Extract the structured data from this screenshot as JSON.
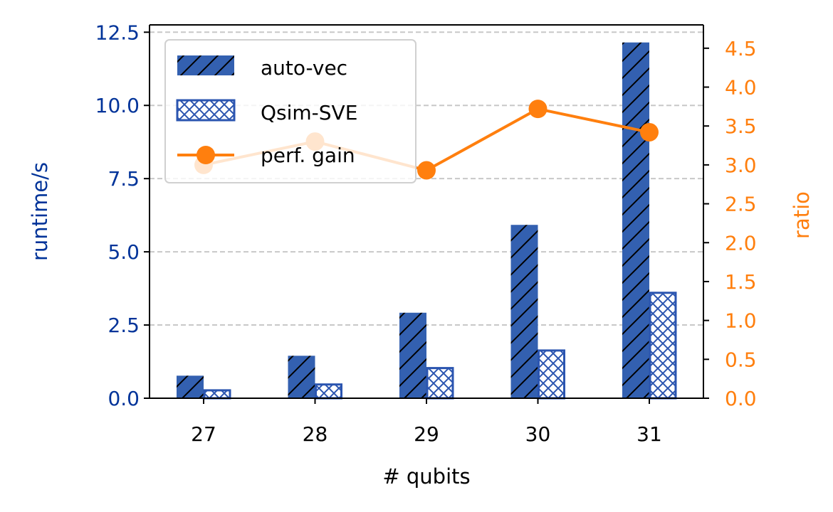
{
  "chart_data": {
    "type": "bar",
    "categories": [
      "27",
      "28",
      "29",
      "30",
      "31"
    ],
    "xlabel": "# qubits",
    "ylabel": "runtime/s",
    "y2label": "ratio",
    "ylim": [
      0,
      12.75
    ],
    "y2lim": [
      0,
      4.8
    ],
    "yticks": [
      "0.0",
      "2.5",
      "5.0",
      "7.5",
      "10.0",
      "12.5"
    ],
    "y2ticks": [
      "0.0",
      "0.5",
      "1.0",
      "1.5",
      "2.0",
      "2.5",
      "3.0",
      "3.5",
      "4.0",
      "4.5"
    ],
    "grid": "horizontal dashed",
    "legend_position": "upper-left",
    "series": [
      {
        "name": "auto-vec",
        "axis": "left",
        "kind": "bar",
        "hatch": "diagonal",
        "values": [
          0.77,
          1.45,
          2.92,
          5.92,
          12.15
        ]
      },
      {
        "name": "Qsim-SVE",
        "axis": "left",
        "kind": "bar",
        "hatch": "crosshatch",
        "values": [
          0.27,
          0.47,
          1.03,
          1.63,
          3.6
        ]
      },
      {
        "name": "perf. gain",
        "axis": "right",
        "kind": "line",
        "values": [
          3.0,
          3.3,
          2.93,
          3.72,
          3.42
        ]
      }
    ],
    "colors": {
      "bar": "#3360b0",
      "bar_edge": "#2b55b0",
      "line": "#ff7f0e",
      "left_axis": "#003399",
      "right_axis": "#ff7f0e"
    }
  }
}
